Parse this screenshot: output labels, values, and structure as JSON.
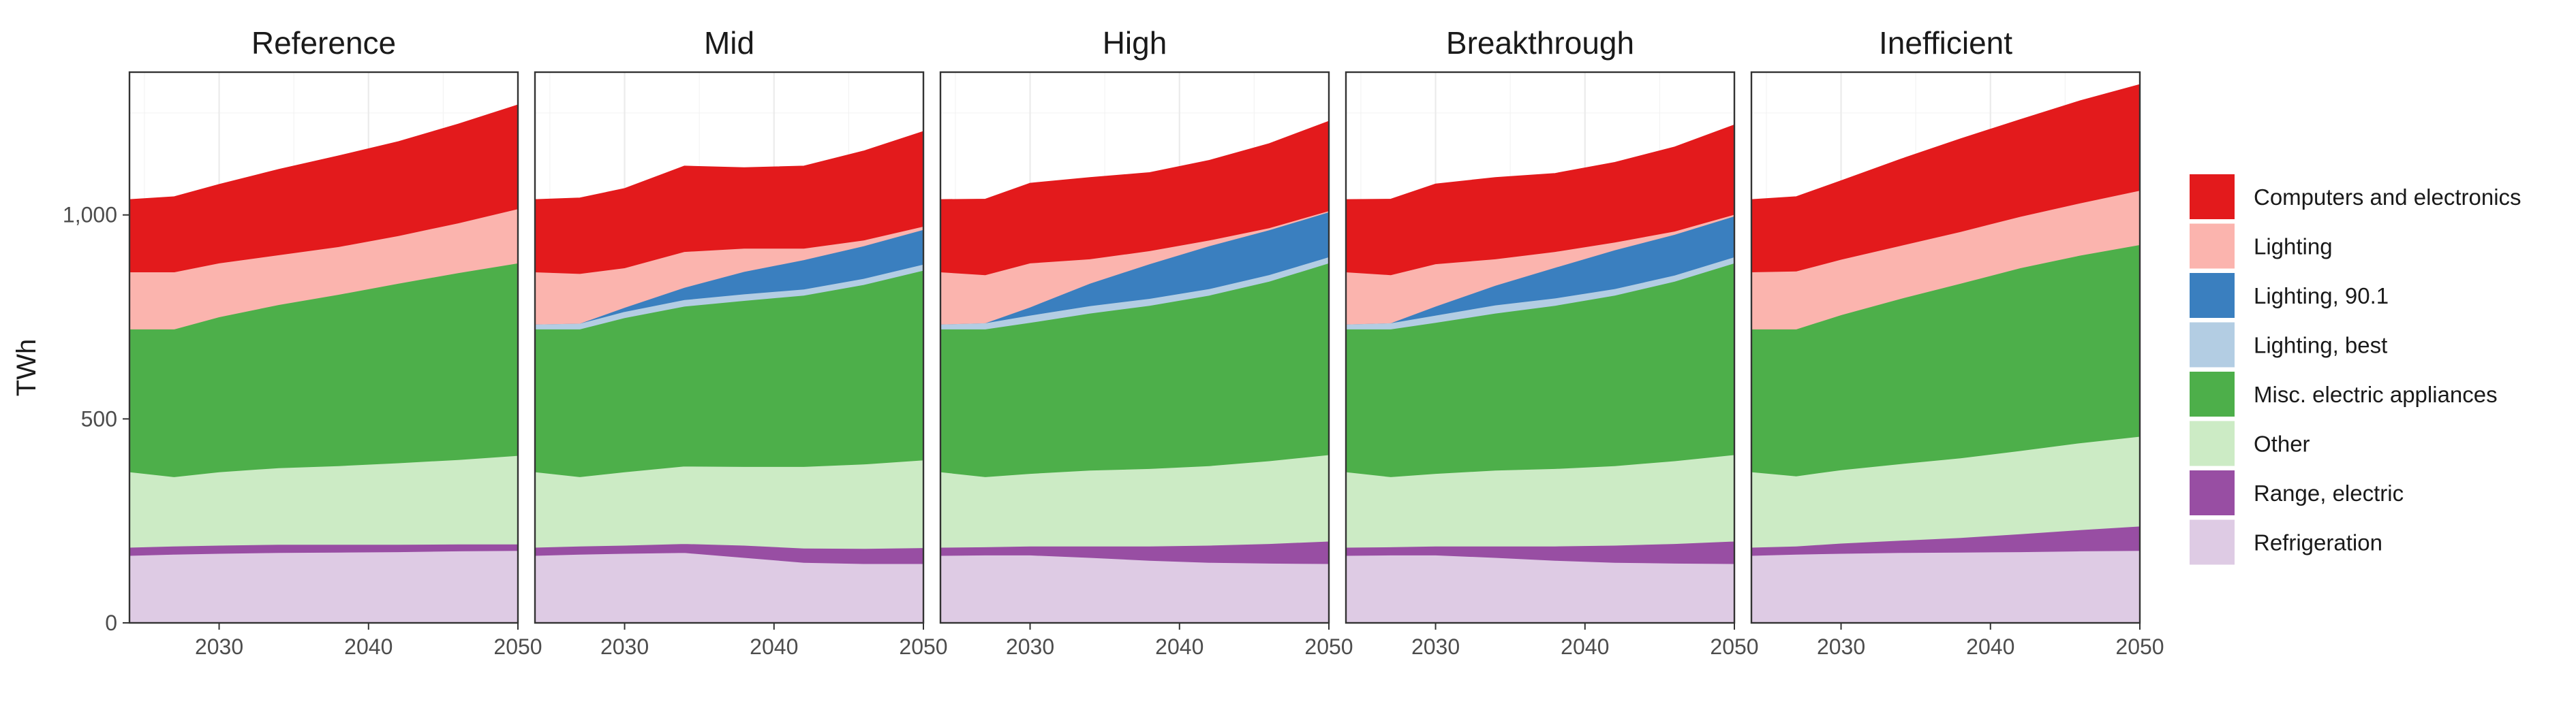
{
  "chart_data": {
    "type": "area",
    "stacked": true,
    "faceted": true,
    "ylabel": "TWh",
    "xlabel": "",
    "xlim": [
      2024,
      2050
    ],
    "ylim": [
      0,
      1350
    ],
    "x_ticks": [
      2030,
      2040,
      2050
    ],
    "x_tick_labels": [
      "2030",
      "2040",
      "2050"
    ],
    "y_ticks": [
      0,
      500,
      1000
    ],
    "y_tick_labels": [
      "0",
      "500",
      "1,000"
    ],
    "grid": true,
    "legend_position": "right",
    "x": [
      2024,
      2027,
      2030,
      2034,
      2038,
      2042,
      2046,
      2050
    ],
    "legend": [
      {
        "name": "Computers and electronics",
        "color": "#e31a1c"
      },
      {
        "name": "Lighting",
        "color": "#fbb4ae"
      },
      {
        "name": "Lighting, 90.1",
        "color": "#3a7fbf"
      },
      {
        "name": "Lighting, best",
        "color": "#b3cde3"
      },
      {
        "name": "Misc. electric appliances",
        "color": "#4daf4a"
      },
      {
        "name": "Other",
        "color": "#ccebc5"
      },
      {
        "name": "Range, electric",
        "color": "#984ea3"
      },
      {
        "name": "Refrigeration",
        "color": "#decbe4"
      }
    ],
    "stack_order": [
      "Refrigeration",
      "Range, electric",
      "Other",
      "Misc. electric appliances",
      "Lighting, best",
      "Lighting, 90.1",
      "Lighting",
      "Computers and electronics"
    ],
    "panels": [
      {
        "title": "Reference",
        "series": [
          {
            "name": "Refrigeration",
            "values": [
              165,
              168,
              170,
              172,
              173,
              174,
              176,
              177
            ]
          },
          {
            "name": "Range, electric",
            "values": [
              20,
              20,
              20,
              20,
              19,
              18,
              17,
              16
            ]
          },
          {
            "name": "Other",
            "values": [
              185,
              170,
              180,
              188,
              193,
              200,
              207,
              217
            ]
          },
          {
            "name": "Misc. electric appliances",
            "values": [
              350,
              362,
              380,
              400,
              420,
              440,
              458,
              472
            ]
          },
          {
            "name": "Lighting, best",
            "values": [
              0,
              0,
              0,
              0,
              0,
              0,
              0,
              0
            ]
          },
          {
            "name": "Lighting, 90.1",
            "values": [
              0,
              0,
              0,
              0,
              0,
              0,
              0,
              0
            ]
          },
          {
            "name": "Lighting",
            "values": [
              140,
              140,
              132,
              122,
              117,
              117,
              122,
              133
            ]
          },
          {
            "name": "Computers and electronics",
            "values": [
              178,
              185,
              193,
              210,
              223,
              231,
              243,
              255
            ]
          }
        ]
      },
      {
        "title": "Mid",
        "series": [
          {
            "name": "Refrigeration",
            "values": [
              165,
              168,
              170,
              172,
              160,
              148,
              145,
              145
            ]
          },
          {
            "name": "Range, electric",
            "values": [
              20,
              20,
              20,
              22,
              30,
              35,
              37,
              39
            ]
          },
          {
            "name": "Other",
            "values": [
              185,
              170,
              180,
              190,
              193,
              200,
              207,
              215
            ]
          },
          {
            "name": "Misc. electric appliances",
            "values": [
              350,
              362,
              378,
              392,
              407,
              420,
              440,
              465
            ]
          },
          {
            "name": "Lighting, best",
            "values": [
              12,
              14,
              15,
              16,
              16,
              15,
              15,
              15
            ]
          },
          {
            "name": "Lighting, 90.1",
            "values": [
              0,
              0,
              10,
              30,
              55,
              72,
              80,
              85
            ]
          },
          {
            "name": "Lighting",
            "values": [
              128,
              122,
              97,
              88,
              57,
              28,
              14,
              8
            ]
          },
          {
            "name": "Computers and electronics",
            "values": [
              178,
              186,
              195,
              210,
              198,
              202,
              219,
              233
            ]
          }
        ]
      },
      {
        "title": "High",
        "series": [
          {
            "name": "Refrigeration",
            "values": [
              165,
              166,
              166,
              160,
              153,
              148,
              146,
              145
            ]
          },
          {
            "name": "Range, electric",
            "values": [
              20,
              20,
              22,
              28,
              35,
              42,
              48,
              55
            ]
          },
          {
            "name": "Other",
            "values": [
              185,
              172,
              178,
              186,
              190,
              195,
              203,
              212
            ]
          },
          {
            "name": "Misc. electric appliances",
            "values": [
              350,
              362,
              370,
              385,
              400,
              418,
              440,
              470
            ]
          },
          {
            "name": "Lighting, best",
            "values": [
              12,
              15,
              18,
              18,
              17,
              16,
              16,
              15
            ]
          },
          {
            "name": "Lighting, 90.1",
            "values": [
              0,
              0,
              20,
              55,
              85,
              105,
              110,
              110
            ]
          },
          {
            "name": "Lighting",
            "values": [
              128,
              118,
              108,
              60,
              32,
              14,
              5,
              3
            ]
          },
          {
            "name": "Computers and electronics",
            "values": [
              178,
              186,
              196,
              200,
              192,
              196,
              207,
              220
            ]
          }
        ]
      },
      {
        "title": "Breakthrough",
        "series": [
          {
            "name": "Refrigeration",
            "values": [
              165,
              166,
              166,
              160,
              153,
              148,
              146,
              145
            ]
          },
          {
            "name": "Range, electric",
            "values": [
              20,
              20,
              22,
              28,
              35,
              42,
              48,
              55
            ]
          },
          {
            "name": "Other",
            "values": [
              185,
              172,
              178,
              186,
              190,
              195,
              203,
              212
            ]
          },
          {
            "name": "Misc. electric appliances",
            "values": [
              350,
              362,
              370,
              385,
              400,
              418,
              440,
              470
            ]
          },
          {
            "name": "Lighting, best",
            "values": [
              12,
              15,
              18,
              20,
              18,
              16,
              15,
              15
            ]
          },
          {
            "name": "Lighting, 90.1",
            "values": [
              0,
              0,
              22,
              48,
              75,
              95,
              100,
              100
            ]
          },
          {
            "name": "Lighting",
            "values": [
              128,
              118,
              104,
              65,
              39,
              19,
              8,
              4
            ]
          },
          {
            "name": "Computers and electronics",
            "values": [
              178,
              186,
              196,
              200,
              192,
              196,
              207,
              220
            ]
          }
        ]
      },
      {
        "title": "Inefficient",
        "series": [
          {
            "name": "Refrigeration",
            "values": [
              165,
              168,
              170,
              172,
              173,
              174,
              176,
              177
            ]
          },
          {
            "name": "Range, electric",
            "values": [
              20,
              20,
              25,
              30,
              36,
              44,
              52,
              60
            ]
          },
          {
            "name": "Other",
            "values": [
              185,
              172,
              180,
              188,
              195,
              204,
              213,
              220
            ]
          },
          {
            "name": "Misc. electric appliances",
            "values": [
              350,
              360,
              380,
              405,
              428,
              448,
              460,
              470
            ]
          },
          {
            "name": "Lighting, best",
            "values": [
              0,
              0,
              0,
              0,
              0,
              0,
              0,
              0
            ]
          },
          {
            "name": "Lighting, 90.1",
            "values": [
              0,
              0,
              0,
              0,
              0,
              0,
              0,
              0
            ]
          },
          {
            "name": "Lighting",
            "values": [
              140,
              142,
              136,
              130,
              127,
              126,
              128,
              133
            ]
          },
          {
            "name": "Computers and electronics",
            "values": [
              178,
              183,
              193,
              212,
              228,
              238,
              251,
              260
            ]
          }
        ]
      }
    ]
  }
}
